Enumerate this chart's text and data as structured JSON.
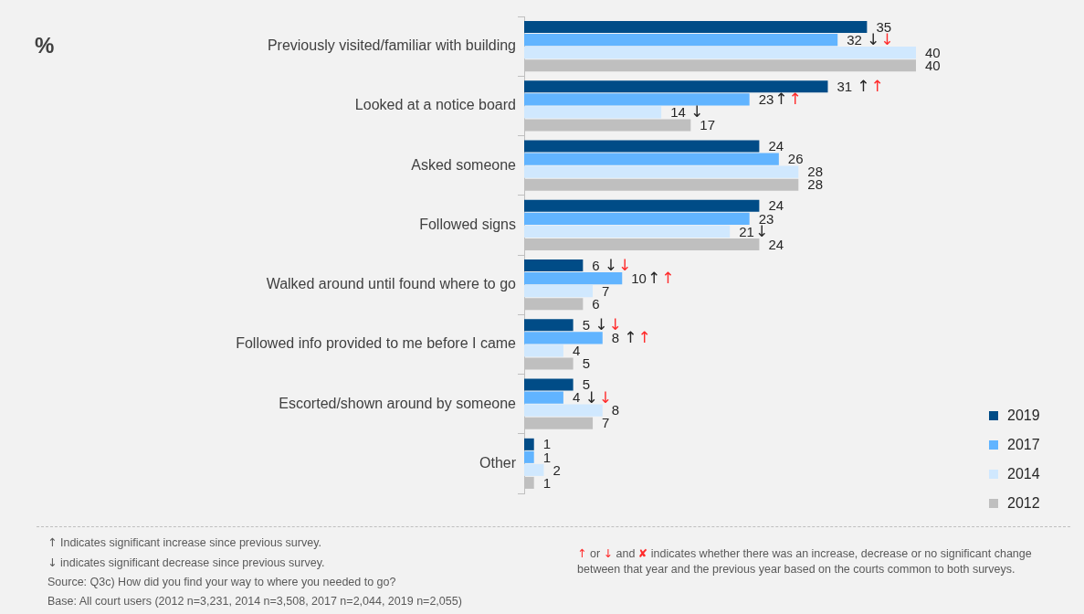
{
  "chart_data": {
    "type": "bar",
    "orientation": "horizontal",
    "title": "%",
    "categories": [
      "Previously visited/familiar with building",
      "Looked at a notice board",
      "Asked someone",
      "Followed signs",
      "Walked around until found where to go",
      "Followed info provided to me before I came",
      "Escorted/shown around by someone",
      "Other"
    ],
    "series": [
      {
        "name": "2019",
        "color": "#004c87",
        "values": [
          35,
          31,
          24,
          24,
          6,
          5,
          5,
          1
        ],
        "value_labels": [
          "35",
          "31 ↑↑",
          "24",
          "24",
          "6 ↓↓",
          "5 ↓↓",
          "5",
          "1"
        ]
      },
      {
        "name": "2017",
        "color": "#61b4ff",
        "values": [
          32,
          23,
          26,
          23,
          10,
          8,
          4,
          1
        ],
        "value_labels": [
          "32 ↓↓",
          "23↑↑",
          "26",
          "23",
          "10↑↑",
          "8 ↑↑",
          "4 ↓↓",
          "1"
        ]
      },
      {
        "name": "2014",
        "color": "#d0e8fe",
        "values": [
          40,
          14,
          28,
          21,
          7,
          4,
          8,
          2
        ],
        "value_labels": [
          "40",
          "14 ↓",
          "28",
          "21↓",
          "7",
          "4",
          "8",
          "2"
        ]
      },
      {
        "name": "2012",
        "color": "#bfbfbf",
        "values": [
          40,
          17,
          28,
          24,
          6,
          5,
          7,
          1
        ],
        "value_labels": [
          "40",
          "17",
          "28",
          "24",
          "6",
          "5",
          "7",
          "1"
        ]
      }
    ],
    "legend": "bottom right",
    "tick_labels": "y",
    "annotations": [
      "↑ Indicates significant increase since previous survey.",
      "↓ indicates significant decrease since previous survey.",
      "Source: Q3c) How did you find your way to where you needed to go?",
      "Base: All court users (2012 n=3,231, 2014 n=3,508, 2017 n=2,044, 2019 n=2,055)",
      "↑ or ↓ and ✘ indicates whether there was an increase, decrease or no significant change between that year and the previous year based on the courts common to both surveys."
    ]
  }
}
